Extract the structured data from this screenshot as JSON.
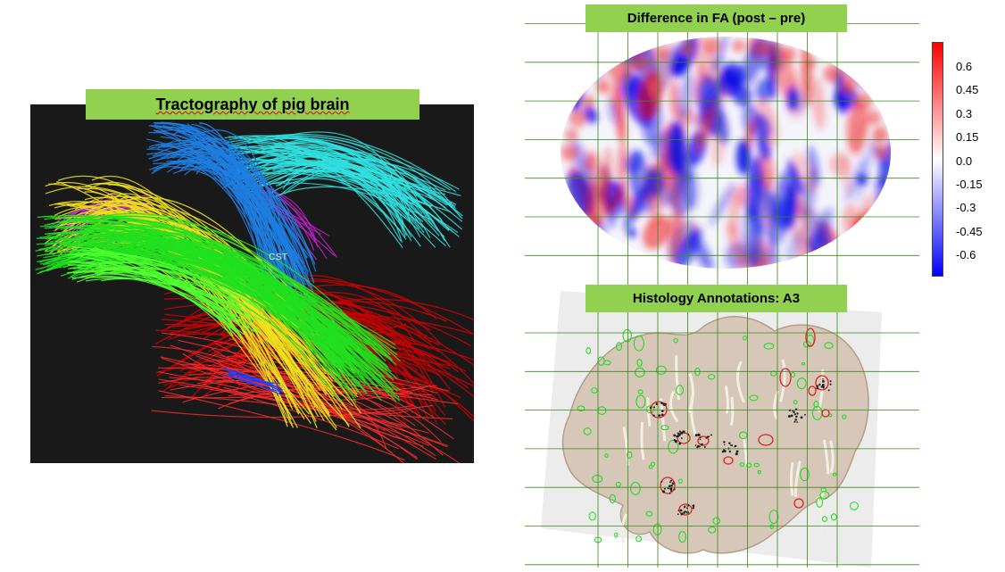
{
  "tractography": {
    "title": "Tractography of pig brain",
    "label": "CST"
  },
  "fa_map": {
    "title": "Difference in FA (post – pre)",
    "colorbar_ticks": [
      "0.6",
      "0.45",
      "0.3",
      "0.15",
      "0.0",
      "-0.15",
      "-0.3",
      "-0.45",
      "-0.6"
    ],
    "colorbar_colors": {
      "max": "#ff0000",
      "mid": "#ffffff",
      "min": "#0000ff"
    }
  },
  "histology": {
    "title": "Histology Annotations: A3",
    "annotation_colors": {
      "green": "#22dd22",
      "red": "#e02020"
    }
  },
  "colors": {
    "banner": "#92d050",
    "grid_line": "#3a8a1a",
    "panel_bg": "#191919"
  }
}
